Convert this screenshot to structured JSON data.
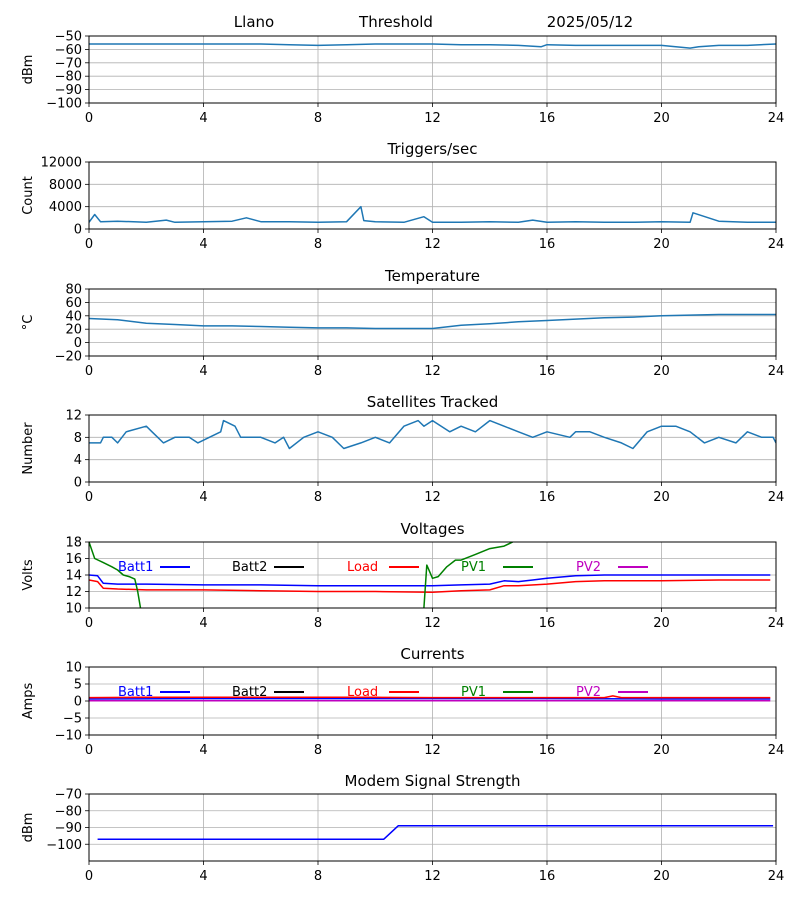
{
  "header": {
    "station": "Llano",
    "mode": "Threshold",
    "date": "2025/05/12"
  },
  "colors": {
    "series_default": "#1f77b4",
    "batt1": "#0000ff",
    "batt2": "#000000",
    "load": "#ff0000",
    "pv1": "#008000",
    "pv2": "#bf00bf",
    "grid": "#b0b0b0"
  },
  "chart_data": [
    {
      "id": "threshold",
      "type": "line",
      "title": "",
      "xlabel": "",
      "ylabel": "dBm",
      "xlim": [
        0,
        24
      ],
      "ylim": [
        -100,
        -50
      ],
      "xticks": [
        0,
        4,
        8,
        12,
        16,
        20,
        24
      ],
      "yticks": [
        -100,
        -90,
        -80,
        -70,
        -60,
        -50
      ],
      "grid": true,
      "series": [
        {
          "color": "#1f77b4",
          "x": [
            0,
            1,
            2,
            3,
            4,
            5,
            6,
            7,
            8,
            9,
            10,
            11,
            12,
            13,
            14,
            15,
            15.8,
            16,
            17,
            18,
            19,
            20,
            20.5,
            21,
            21.3,
            22,
            23,
            24
          ],
          "y": [
            -56,
            -56,
            -56,
            -56,
            -56,
            -56,
            -56,
            -56.5,
            -57,
            -56.5,
            -56,
            -56,
            -56,
            -56.5,
            -56.5,
            -57,
            -58,
            -56.5,
            -57,
            -57,
            -57,
            -57,
            -58,
            -59,
            -58,
            -57,
            -57,
            -56
          ]
        }
      ]
    },
    {
      "id": "triggers",
      "type": "line",
      "title": "Triggers/sec",
      "xlabel": "",
      "ylabel": "Count",
      "xlim": [
        0,
        24
      ],
      "ylim": [
        0,
        12000
      ],
      "xticks": [
        0,
        4,
        8,
        12,
        16,
        20,
        24
      ],
      "yticks": [
        0,
        4000,
        8000,
        12000
      ],
      "grid": true,
      "series": [
        {
          "color": "#1f77b4",
          "x": [
            0,
            0.2,
            0.4,
            1,
            2,
            2.7,
            3,
            4,
            5,
            5.5,
            6,
            7,
            8,
            9,
            9.5,
            9.6,
            10,
            11,
            11.7,
            12,
            13,
            14,
            15,
            15.5,
            16,
            17,
            18,
            19,
            20,
            21,
            21.1,
            22,
            23,
            24
          ],
          "y": [
            1200,
            2600,
            1300,
            1400,
            1200,
            1600,
            1200,
            1300,
            1400,
            2000,
            1300,
            1300,
            1200,
            1300,
            4000,
            1500,
            1300,
            1200,
            2200,
            1200,
            1200,
            1300,
            1200,
            1600,
            1200,
            1300,
            1200,
            1200,
            1300,
            1200,
            2900,
            1400,
            1200,
            1200
          ]
        }
      ]
    },
    {
      "id": "temperature",
      "type": "line",
      "title": "Temperature",
      "xlabel": "",
      "ylabel": "°C",
      "xlim": [
        0,
        24
      ],
      "ylim": [
        -20,
        80
      ],
      "xticks": [
        0,
        4,
        8,
        12,
        16,
        20,
        24
      ],
      "yticks": [
        -20,
        0,
        20,
        40,
        60,
        80
      ],
      "grid": true,
      "series": [
        {
          "color": "#1f77b4",
          "x": [
            0,
            1,
            2,
            3,
            4,
            5,
            6,
            7,
            8,
            9,
            10,
            11,
            12,
            13,
            14,
            15,
            16,
            17,
            18,
            19,
            20,
            21,
            22,
            23,
            24
          ],
          "y": [
            36,
            34,
            29,
            27,
            25,
            25,
            24,
            23,
            22,
            22,
            21,
            21,
            21,
            26,
            28,
            31,
            33,
            35,
            37,
            38,
            40,
            41,
            42,
            42,
            42
          ]
        }
      ]
    },
    {
      "id": "satellites",
      "type": "line",
      "title": "Satellites Tracked",
      "xlabel": "",
      "ylabel": "Number",
      "xlim": [
        0,
        24
      ],
      "ylim": [
        0,
        12
      ],
      "xticks": [
        0,
        4,
        8,
        12,
        16,
        20,
        24
      ],
      "yticks": [
        0,
        4,
        8,
        12
      ],
      "grid": true,
      "series": [
        {
          "color": "#1f77b4",
          "x": [
            0,
            0.4,
            0.5,
            0.8,
            1,
            1.3,
            2,
            2.2,
            2.4,
            2.6,
            3,
            3.5,
            3.8,
            4.6,
            4.7,
            5.1,
            5.3,
            6,
            6.5,
            6.8,
            7,
            7.5,
            8,
            8.5,
            8.9,
            9.5,
            10,
            10.5,
            11,
            11.5,
            11.7,
            12,
            12.6,
            13,
            13.5,
            14,
            14.5,
            15,
            15.5,
            16,
            16.8,
            17,
            17.5,
            18,
            18.6,
            19,
            19.5,
            20,
            20.5,
            21,
            21.5,
            22,
            22.6,
            23,
            23.5,
            23.9,
            24
          ],
          "y": [
            7,
            7,
            8,
            8,
            7,
            9,
            10,
            9,
            8,
            7,
            8,
            8,
            7,
            9,
            11,
            10,
            8,
            8,
            7,
            8,
            6,
            8,
            9,
            8,
            6,
            7,
            8,
            7,
            10,
            11,
            10,
            11,
            9,
            10,
            9,
            11,
            10,
            9,
            8,
            9,
            8,
            9,
            9,
            8,
            7,
            6,
            9,
            10,
            10,
            9,
            7,
            8,
            7,
            9,
            8,
            8,
            7
          ]
        }
      ]
    },
    {
      "id": "voltages",
      "type": "line",
      "title": "Voltages",
      "xlabel": "",
      "ylabel": "Volts",
      "xlim": [
        0,
        24
      ],
      "ylim": [
        10,
        18
      ],
      "xticks": [
        0,
        4,
        8,
        12,
        16,
        20,
        24
      ],
      "yticks": [
        10,
        12,
        14,
        16,
        18
      ],
      "grid": true,
      "legend": "top",
      "series": [
        {
          "name": "Batt1",
          "color": "#0000ff",
          "x": [
            0,
            0.3,
            0.5,
            1,
            2,
            4,
            6,
            8,
            10,
            12,
            13,
            14,
            14.5,
            15,
            15.5,
            16,
            17,
            18,
            20,
            22,
            23.8
          ],
          "y": [
            14,
            13.9,
            13,
            12.9,
            12.9,
            12.8,
            12.8,
            12.7,
            12.7,
            12.7,
            12.8,
            12.9,
            13.3,
            13.2,
            13.4,
            13.6,
            13.9,
            14,
            14,
            14,
            14
          ]
        },
        {
          "name": "Load",
          "color": "#ff0000",
          "x": [
            0,
            0.3,
            0.5,
            1,
            2,
            4,
            6,
            8,
            10,
            12,
            13,
            14,
            14.5,
            15,
            16,
            17,
            18,
            20,
            22,
            23.8
          ],
          "y": [
            13.4,
            13.2,
            12.4,
            12.3,
            12.2,
            12.2,
            12.1,
            12,
            12,
            11.9,
            12.1,
            12.2,
            12.7,
            12.7,
            12.9,
            13.2,
            13.3,
            13.3,
            13.4,
            13.4
          ]
        },
        {
          "name": "PV1",
          "color": "#008000",
          "x": [
            0,
            0.2,
            0.5,
            0.8,
            1,
            1.2,
            1.4,
            1.6,
            1.7,
            1.8
          ],
          "y": [
            18,
            16,
            15.5,
            15,
            14.6,
            14,
            13.8,
            13.5,
            12,
            10
          ]
        },
        {
          "name": "PV1",
          "color": "#008000",
          "x": [
            11.7,
            11.8,
            12,
            12.2,
            12.5,
            12.8,
            13,
            13.5,
            14,
            14.5,
            14.8
          ],
          "y": [
            10,
            15.2,
            13.6,
            13.8,
            15,
            15.8,
            15.8,
            16.5,
            17.2,
            17.5,
            18
          ]
        },
        {
          "name": "Batt2",
          "color": "#000000",
          "x": [],
          "y": []
        },
        {
          "name": "PV2",
          "color": "#bf00bf",
          "x": [],
          "y": []
        }
      ]
    },
    {
      "id": "currents",
      "type": "line",
      "title": "Currents",
      "xlabel": "",
      "ylabel": "Amps",
      "xlim": [
        0,
        24
      ],
      "ylim": [
        -10,
        10
      ],
      "xticks": [
        0,
        4,
        8,
        12,
        16,
        20,
        24
      ],
      "yticks": [
        -10,
        -5,
        0,
        5,
        10
      ],
      "grid": true,
      "legend": "top",
      "series": [
        {
          "name": "Batt1",
          "color": "#0000ff",
          "x": [
            0,
            4,
            8,
            12,
            16,
            20,
            23.8
          ],
          "y": [
            0.6,
            0.7,
            0.7,
            0.7,
            0.7,
            0.6,
            0.6
          ]
        },
        {
          "name": "Load",
          "color": "#ff0000",
          "x": [
            0,
            2,
            4,
            6,
            8,
            10,
            12,
            14,
            16,
            18,
            18.3,
            18.6,
            20,
            22,
            23.8
          ],
          "y": [
            1,
            1.1,
            1.1,
            1.1,
            1.1,
            1.1,
            1,
            1,
            1,
            1,
            1.5,
            1,
            1,
            1,
            1
          ]
        },
        {
          "name": "PV1",
          "color": "#008000",
          "x": [],
          "y": []
        },
        {
          "name": "Batt2",
          "color": "#000000",
          "x": [],
          "y": []
        },
        {
          "name": "PV2",
          "color": "#bf00bf",
          "x": [
            0,
            23.8
          ],
          "y": [
            0.1,
            0.1
          ]
        }
      ]
    },
    {
      "id": "modem",
      "type": "line",
      "title": "Modem Signal Strength",
      "xlabel": "",
      "ylabel": "dBm",
      "xlim": [
        0,
        24
      ],
      "ylim": [
        -110,
        -70
      ],
      "xticks": [
        0,
        4,
        8,
        12,
        16,
        20,
        24
      ],
      "yticks": [
        -100,
        -90,
        -80,
        -70
      ],
      "grid": true,
      "series": [
        {
          "color": "#0000ff",
          "x": [
            0.3,
            10.3,
            10.8,
            23.9
          ],
          "y": [
            -97,
            -97,
            -89,
            -89
          ]
        }
      ]
    }
  ],
  "legend": {
    "items": [
      {
        "label": "Batt1",
        "color": "#0000ff"
      },
      {
        "label": "Batt2",
        "color": "#000000"
      },
      {
        "label": "Load",
        "color": "#ff0000"
      },
      {
        "label": "PV1",
        "color": "#008000"
      },
      {
        "label": "PV2",
        "color": "#bf00bf"
      }
    ]
  }
}
